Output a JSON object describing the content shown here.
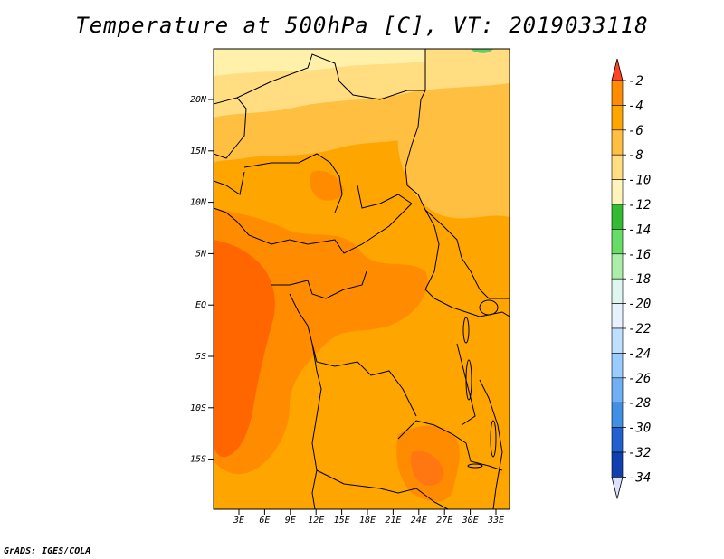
{
  "title": "Temperature at 500hPa [C], VT: 2019033118",
  "credit": "GrADS: IGES/COLA",
  "map": {
    "lat_ticks": [
      "20N",
      "15N",
      "10N",
      "5N",
      "EQ",
      "5S",
      "10S",
      "15S"
    ],
    "lon_ticks": [
      "3E",
      "6E",
      "9E",
      "12E",
      "15E",
      "18E",
      "21E",
      "24E",
      "27E",
      "30E",
      "33E"
    ]
  },
  "colorbar": {
    "labels": [
      "-2",
      "-4",
      "-6",
      "-8",
      "-10",
      "-12",
      "-14",
      "-16",
      "-18",
      "-20",
      "-22",
      "-24",
      "-26",
      "-28",
      "-30",
      "-32",
      "-34"
    ],
    "colors": [
      "#ff6600",
      "#ff8c00",
      "#ffa500",
      "#ffbf40",
      "#ffdd80",
      "#fff5bb",
      "#33bb33",
      "#66dd66",
      "#aaeeaa",
      "#ddf6f0",
      "#e6f3ff",
      "#bfdfff",
      "#99ccff",
      "#6fb0f5",
      "#4090e6",
      "#2060d0",
      "#1040b0",
      "#0a0a80"
    ],
    "top_arrow_color": "#ff4422",
    "bottom_arrow_color": "#dde0ff"
  }
}
